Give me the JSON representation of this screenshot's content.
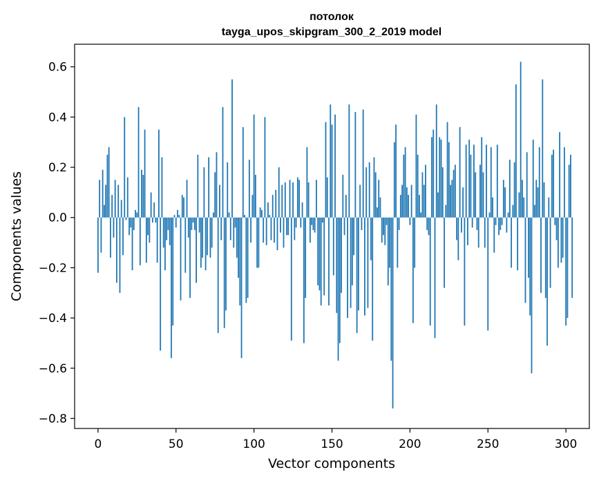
{
  "chart_data": {
    "type": "bar",
    "title_lines": [
      "потолок",
      "tayga_upos_skipgram_300_2_2019 model"
    ],
    "xlabel": "Vector components",
    "ylabel": "Components values",
    "xlim": [
      -15,
      315
    ],
    "ylim": [
      -0.84,
      0.69
    ],
    "xticks": [
      0,
      50,
      100,
      150,
      200,
      250,
      300
    ],
    "yticks": [
      -0.8,
      -0.6,
      -0.4,
      -0.2,
      0.0,
      0.2,
      0.4,
      0.6
    ],
    "ytick_labels": [
      "−0.8",
      "−0.6",
      "−0.4",
      "−0.2",
      "0.0",
      "0.2",
      "0.4",
      "0.6"
    ],
    "xtick_labels": [
      "0",
      "50",
      "100",
      "150",
      "200",
      "250",
      "300"
    ],
    "bar_color": "#1f77b4",
    "grid": false,
    "legend": "none",
    "values": [
      -0.22,
      0.15,
      -0.14,
      0.19,
      0.05,
      0.13,
      0.25,
      0.28,
      -0.16,
      0.09,
      -0.08,
      0.15,
      -0.26,
      0.13,
      -0.3,
      0.07,
      -0.15,
      0.4,
      -0.01,
      0.16,
      -0.07,
      -0.04,
      -0.21,
      -0.05,
      0.03,
      0.02,
      0.44,
      -0.19,
      0.19,
      0.17,
      0.35,
      -0.18,
      -0.07,
      -0.1,
      0.1,
      -0.02,
      0.06,
      -0.02,
      -0.18,
      0.35,
      -0.53,
      0.24,
      -0.12,
      -0.21,
      -0.09,
      -0.05,
      -0.11,
      -0.56,
      -0.43,
      0.01,
      -0.04,
      0.03,
      0.01,
      -0.33,
      0.09,
      0.08,
      -0.22,
      0.15,
      -0.08,
      -0.32,
      -0.05,
      -0.02,
      -0.05,
      -0.26,
      0.25,
      -0.06,
      -0.2,
      -0.16,
      0.2,
      -0.21,
      -0.15,
      0.24,
      -0.16,
      -0.12,
      0.02,
      0.18,
      0.26,
      -0.46,
      0.13,
      -0.09,
      0.44,
      -0.44,
      -0.37,
      0.22,
      0.02,
      -0.09,
      0.55,
      -0.12,
      -0.04,
      -0.16,
      -0.24,
      -0.35,
      -0.56,
      0.36,
      0.01,
      -0.34,
      -0.32,
      0.23,
      -0.1,
      0.09,
      0.41,
      0.17,
      -0.2,
      -0.2,
      0.04,
      0.03,
      -0.1,
      0.4,
      -0.11,
      0.06,
      0.01,
      -0.09,
      0.09,
      -0.1,
      0.11,
      -0.13,
      0.2,
      -0.06,
      0.13,
      -0.12,
      0.14,
      -0.07,
      -0.07,
      0.15,
      -0.49,
      0.14,
      -0.09,
      -0.04,
      0.16,
      0.15,
      -0.04,
      0.06,
      -0.5,
      -0.32,
      0.28,
      0.14,
      -0.1,
      -0.03,
      -0.05,
      -0.06,
      0.15,
      -0.27,
      -0.29,
      -0.35,
      -0.02,
      -0.31,
      0.38,
      0.16,
      -0.35,
      0.45,
      0.37,
      -0.23,
      0.41,
      -0.38,
      -0.57,
      -0.5,
      -0.3,
      0.17,
      -0.07,
      0.09,
      -0.4,
      0.45,
      -0.36,
      -0.27,
      -0.15,
      0.42,
      -0.46,
      -0.37,
      0.13,
      -0.05,
      0.43,
      -0.39,
      0.2,
      -0.36,
      0.22,
      -0.17,
      -0.49,
      0.24,
      0.18,
      0.04,
      0.15,
      0.08,
      -0.1,
      -0.07,
      -0.11,
      -0.03,
      -0.27,
      -0.2,
      -0.57,
      -0.76,
      0.3,
      0.37,
      -0.2,
      -0.05,
      0.09,
      0.13,
      0.25,
      0.28,
      0.12,
      0.09,
      -0.03,
      0.13,
      -0.42,
      -0.2,
      0.41,
      0.25,
      0.09,
      0.02,
      0.18,
      0.13,
      0.21,
      -0.05,
      -0.07,
      -0.43,
      0.32,
      0.35,
      -0.48,
      0.45,
      0.1,
      0.32,
      0.31,
      0.2,
      -0.28,
      0.05,
      0.38,
      0.3,
      0.13,
      0.15,
      0.19,
      0.21,
      -0.09,
      -0.17,
      0.36,
      -0.06,
      0.12,
      -0.43,
      0.29,
      -0.11,
      0.31,
      0.25,
      -0.04,
      0.29,
      0.18,
      -0.05,
      -0.12,
      0.21,
      0.32,
      0.18,
      -0.12,
      0.29,
      -0.45,
      0.02,
      0.28,
      0.08,
      -0.14,
      -0.03,
      0.29,
      -0.07,
      -0.05,
      -0.03,
      0.15,
      0.12,
      -0.06,
      0.02,
      0.23,
      -0.2,
      0.05,
      0.22,
      0.53,
      -0.21,
      0.1,
      0.62,
      0.15,
      0.08,
      -0.34,
      0.26,
      -0.24,
      -0.39,
      -0.62,
      0.31,
      0.05,
      0.15,
      0.12,
      0.28,
      -0.3,
      0.55,
      0.14,
      -0.32,
      -0.51,
      0.08,
      -0.28,
      0.25,
      0.27,
      -0.03,
      -0.09,
      -0.2,
      0.34,
      -0.18,
      -0.16,
      0.28,
      -0.43,
      -0.4,
      0.21,
      0.25,
      -0.32
    ]
  }
}
